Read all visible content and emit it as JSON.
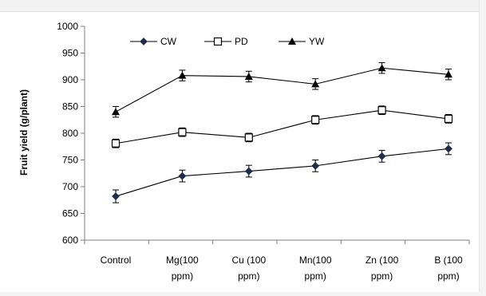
{
  "chart_data": {
    "type": "line",
    "title": "",
    "xlabel": "",
    "ylabel": "Fruit yield  (g/plant)",
    "ylim": [
      600,
      1000
    ],
    "ytick_step": 50,
    "grid": false,
    "legend_position": "top-left",
    "categories": [
      [
        "Control"
      ],
      [
        "Mg(100",
        "ppm)"
      ],
      [
        "Cu (100",
        "ppm)"
      ],
      [
        "Mn(100",
        "ppm)"
      ],
      [
        "Zn (100",
        "ppm)"
      ],
      [
        "B (100",
        "ppm)"
      ]
    ],
    "series": [
      {
        "name": "CW",
        "marker": "diamond",
        "color": "#1f2d4d",
        "values": [
          682,
          720,
          729,
          739,
          757,
          771
        ],
        "errors": [
          12,
          11,
          11,
          11,
          11,
          11
        ]
      },
      {
        "name": "PD",
        "marker": "square-open",
        "color": "#000000",
        "values": [
          781,
          802,
          792,
          825,
          843,
          827
        ],
        "errors": [
          8,
          8,
          8,
          8,
          8,
          8
        ]
      },
      {
        "name": "YW",
        "marker": "triangle",
        "color": "#000000",
        "values": [
          840,
          908,
          906,
          892,
          922,
          910
        ],
        "errors": [
          10,
          10,
          10,
          10,
          10,
          10
        ]
      }
    ]
  },
  "colors": {
    "axis": "#7f7f7f",
    "line": "#000000",
    "frame_strip": "#f2f2f2"
  }
}
